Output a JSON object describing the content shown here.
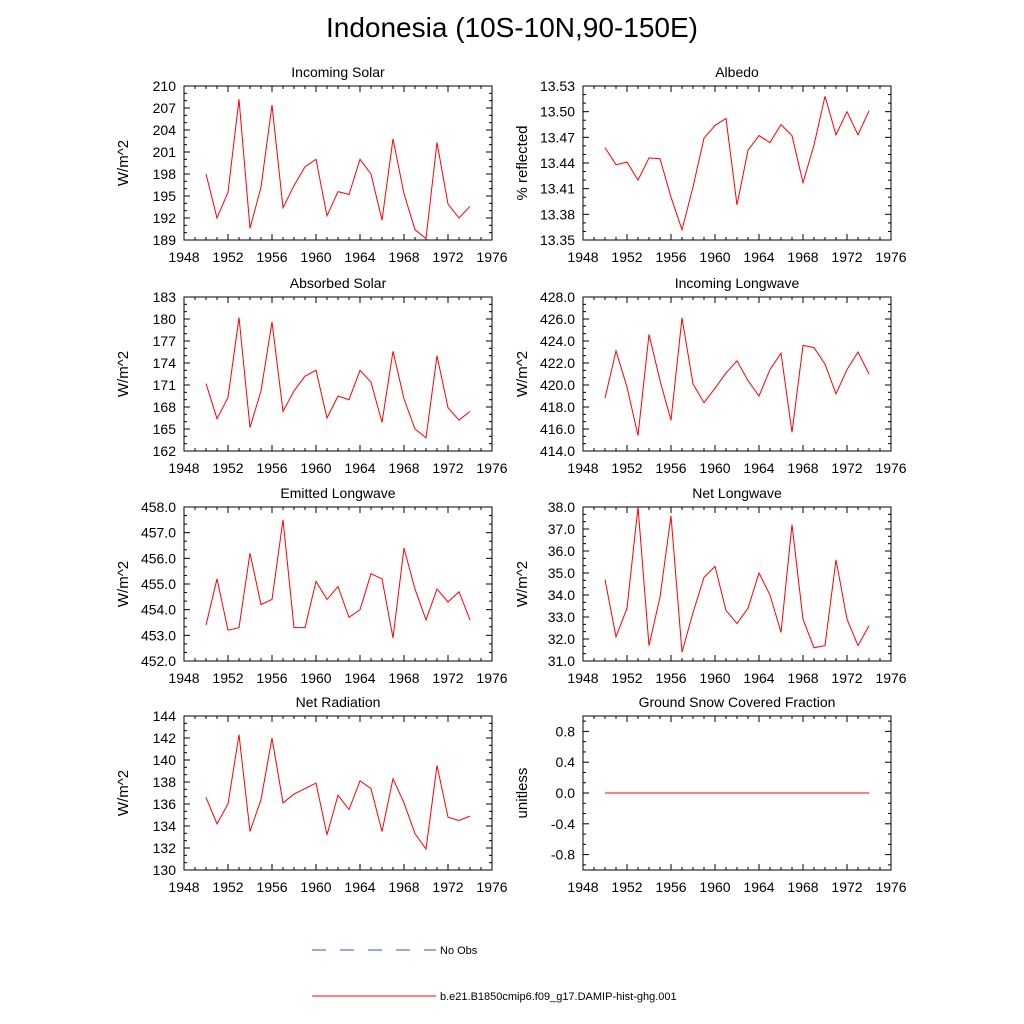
{
  "title": "Indonesia (10S-10N,90-150E)",
  "colors": {
    "model": "#ff0000",
    "obs": "#3355cc",
    "axis": "#000000"
  },
  "legend": [
    {
      "label": "No Obs",
      "style": "dashed",
      "color": "#3355cc"
    },
    {
      "label": "b.e21.B1850cmip6.f09_g17.DAMIP-hist-ghg.001",
      "style": "solid",
      "color": "#ff0000"
    }
  ],
  "chart_data": [
    {
      "type": "line",
      "title": "Incoming Solar",
      "ylabel": "W/m^2",
      "xlim": [
        1948,
        1976
      ],
      "xticks": [
        "1948",
        "1952",
        "1956",
        "1960",
        "1964",
        "1968",
        "1972",
        "1976"
      ],
      "ylim": [
        189,
        210
      ],
      "yticks": [
        "189",
        "192",
        "195",
        "198",
        "201",
        "204",
        "207",
        "210"
      ],
      "x": [
        1950,
        1951,
        1952,
        1953,
        1954,
        1955,
        1956,
        1957,
        1958,
        1959,
        1960,
        1961,
        1962,
        1963,
        1964,
        1965,
        1966,
        1967,
        1968,
        1969,
        1970,
        1971,
        1972,
        1973,
        1974
      ],
      "series": [
        {
          "values": [
            198.0,
            192.0,
            195.5,
            208.2,
            190.6,
            196.2,
            207.4,
            193.4,
            196.4,
            199.0,
            200.0,
            192.3,
            195.6,
            195.2,
            200.0,
            198.0,
            191.7,
            202.8,
            195.3,
            190.4,
            189.2,
            202.3,
            193.9,
            192.0,
            193.6
          ]
        }
      ]
    },
    {
      "type": "line",
      "title": "Albedo",
      "ylabel": "% reflected",
      "xlim": [
        1948,
        1976
      ],
      "xticks": [
        "1948",
        "1952",
        "1956",
        "1960",
        "1964",
        "1968",
        "1972",
        "1976"
      ],
      "ylim": [
        13.35,
        13.53
      ],
      "yticks": [
        "13.35",
        "13.38",
        "13.41",
        "13.44",
        "13.47",
        "13.50",
        "13.53"
      ],
      "x": [
        1950,
        1951,
        1952,
        1953,
        1954,
        1955,
        1956,
        1957,
        1958,
        1959,
        1960,
        1961,
        1962,
        1963,
        1964,
        1965,
        1966,
        1967,
        1968,
        1969,
        1970,
        1971,
        1972,
        1973,
        1974
      ],
      "series": [
        {
          "values": [
            13.458,
            13.438,
            13.441,
            13.42,
            13.446,
            13.445,
            13.4,
            13.362,
            13.412,
            13.469,
            13.484,
            13.492,
            13.391,
            13.455,
            13.472,
            13.464,
            13.485,
            13.472,
            13.417,
            13.461,
            13.518,
            13.473,
            13.5,
            13.473,
            13.501
          ]
        }
      ]
    },
    {
      "type": "line",
      "title": "Absorbed Solar",
      "ylabel": "W/m^2",
      "xlim": [
        1948,
        1976
      ],
      "xticks": [
        "1948",
        "1952",
        "1956",
        "1960",
        "1964",
        "1968",
        "1972",
        "1976"
      ],
      "ylim": [
        162,
        183
      ],
      "yticks": [
        "162",
        "165",
        "168",
        "171",
        "174",
        "177",
        "180",
        "183"
      ],
      "x": [
        1950,
        1951,
        1952,
        1953,
        1954,
        1955,
        1956,
        1957,
        1958,
        1959,
        1960,
        1961,
        1962,
        1963,
        1964,
        1965,
        1966,
        1967,
        1968,
        1969,
        1970,
        1971,
        1972,
        1973,
        1974
      ],
      "series": [
        {
          "values": [
            171.2,
            166.4,
            169.3,
            180.2,
            165.2,
            170.2,
            179.6,
            167.4,
            170.2,
            172.2,
            173.0,
            166.5,
            169.5,
            169.0,
            173.0,
            171.4,
            165.9,
            175.6,
            169.1,
            165.0,
            163.8,
            175.0,
            167.9,
            166.2,
            167.4
          ]
        }
      ]
    },
    {
      "type": "line",
      "title": "Incoming Longwave",
      "ylabel": "W/m^2",
      "xlim": [
        1948,
        1976
      ],
      "xticks": [
        "1948",
        "1952",
        "1956",
        "1960",
        "1964",
        "1968",
        "1972",
        "1976"
      ],
      "ylim": [
        414.0,
        428.0
      ],
      "yticks": [
        "414.0",
        "416.0",
        "418.0",
        "420.0",
        "422.0",
        "424.0",
        "426.0",
        "428.0"
      ],
      "x": [
        1950,
        1951,
        1952,
        1953,
        1954,
        1955,
        1956,
        1957,
        1958,
        1959,
        1960,
        1961,
        1962,
        1963,
        1964,
        1965,
        1966,
        1967,
        1968,
        1969,
        1970,
        1971,
        1972,
        1973,
        1974
      ],
      "series": [
        {
          "values": [
            418.8,
            423.1,
            419.8,
            415.4,
            424.6,
            420.4,
            416.8,
            426.1,
            420.1,
            418.4,
            419.7,
            421.1,
            422.2,
            420.4,
            419.0,
            421.4,
            422.9,
            415.7,
            423.6,
            423.4,
            421.9,
            419.2,
            421.4,
            423.0,
            421.0
          ]
        }
      ]
    },
    {
      "type": "line",
      "title": "Emitted Longwave",
      "ylabel": "W/m^2",
      "xlim": [
        1948,
        1976
      ],
      "xticks": [
        "1948",
        "1952",
        "1956",
        "1960",
        "1964",
        "1968",
        "1972",
        "1976"
      ],
      "ylim": [
        452.0,
        458.0
      ],
      "yticks": [
        "452.0",
        "453.0",
        "454.0",
        "455.0",
        "456.0",
        "457.0",
        "458.0"
      ],
      "x": [
        1950,
        1951,
        1952,
        1953,
        1954,
        1955,
        1956,
        1957,
        1958,
        1959,
        1960,
        1961,
        1962,
        1963,
        1964,
        1965,
        1966,
        1967,
        1968,
        1969,
        1970,
        1971,
        1972,
        1973,
        1974
      ],
      "series": [
        {
          "values": [
            453.4,
            455.2,
            453.2,
            453.3,
            456.2,
            454.2,
            454.4,
            457.5,
            453.3,
            453.3,
            455.1,
            454.4,
            454.9,
            453.7,
            454.0,
            455.4,
            455.2,
            452.9,
            456.4,
            454.8,
            453.6,
            454.8,
            454.3,
            454.7,
            453.6
          ]
        }
      ]
    },
    {
      "type": "line",
      "title": "Net Longwave",
      "ylabel": "W/m^2",
      "xlim": [
        1948,
        1976
      ],
      "xticks": [
        "1948",
        "1952",
        "1956",
        "1960",
        "1964",
        "1968",
        "1972",
        "1976"
      ],
      "ylim": [
        31.0,
        38.0
      ],
      "yticks": [
        "31.0",
        "32.0",
        "33.0",
        "34.0",
        "35.0",
        "36.0",
        "37.0",
        "38.0"
      ],
      "x": [
        1950,
        1951,
        1952,
        1953,
        1954,
        1955,
        1956,
        1957,
        1958,
        1959,
        1960,
        1961,
        1962,
        1963,
        1964,
        1965,
        1966,
        1967,
        1968,
        1969,
        1970,
        1971,
        1972,
        1973,
        1974
      ],
      "series": [
        {
          "values": [
            34.7,
            32.1,
            33.4,
            38.0,
            31.7,
            33.9,
            37.6,
            31.4,
            33.2,
            34.8,
            35.3,
            33.3,
            32.7,
            33.4,
            35.0,
            34.0,
            32.3,
            37.2,
            32.9,
            31.6,
            31.7,
            35.6,
            32.9,
            31.7,
            32.6
          ]
        }
      ]
    },
    {
      "type": "line",
      "title": "Net Radiation",
      "ylabel": "W/m^2",
      "xlim": [
        1948,
        1976
      ],
      "xticks": [
        "1948",
        "1952",
        "1956",
        "1960",
        "1964",
        "1968",
        "1972",
        "1976"
      ],
      "ylim": [
        130,
        144
      ],
      "yticks": [
        "130",
        "132",
        "134",
        "136",
        "138",
        "140",
        "142",
        "144"
      ],
      "x": [
        1950,
        1951,
        1952,
        1953,
        1954,
        1955,
        1956,
        1957,
        1958,
        1959,
        1960,
        1961,
        1962,
        1963,
        1964,
        1965,
        1966,
        1967,
        1968,
        1969,
        1970,
        1971,
        1972,
        1973,
        1974
      ],
      "series": [
        {
          "values": [
            136.6,
            134.2,
            136.0,
            142.3,
            133.5,
            136.4,
            142.0,
            136.1,
            136.9,
            137.4,
            137.9,
            133.2,
            136.8,
            135.5,
            138.1,
            137.4,
            133.5,
            138.3,
            136.1,
            133.3,
            131.9,
            139.5,
            134.8,
            134.5,
            134.9
          ]
        }
      ]
    },
    {
      "type": "line",
      "title": "Ground Snow Covered Fraction",
      "ylabel": "unitless",
      "xlim": [
        1948,
        1976
      ],
      "xticks": [
        "1948",
        "1952",
        "1956",
        "1960",
        "1964",
        "1968",
        "1972",
        "1976"
      ],
      "ylim": [
        -1.0,
        1.0
      ],
      "yticks": [
        "-0.8",
        "-0.4",
        "0.0",
        "0.4",
        "0.8"
      ],
      "x": [
        1950,
        1951,
        1952,
        1953,
        1954,
        1955,
        1956,
        1957,
        1958,
        1959,
        1960,
        1961,
        1962,
        1963,
        1964,
        1965,
        1966,
        1967,
        1968,
        1969,
        1970,
        1971,
        1972,
        1973,
        1974
      ],
      "series": [
        {
          "values": [
            0,
            0,
            0,
            0,
            0,
            0,
            0,
            0,
            0,
            0,
            0,
            0,
            0,
            0,
            0,
            0,
            0,
            0,
            0,
            0,
            0,
            0,
            0,
            0,
            0
          ]
        }
      ]
    }
  ]
}
